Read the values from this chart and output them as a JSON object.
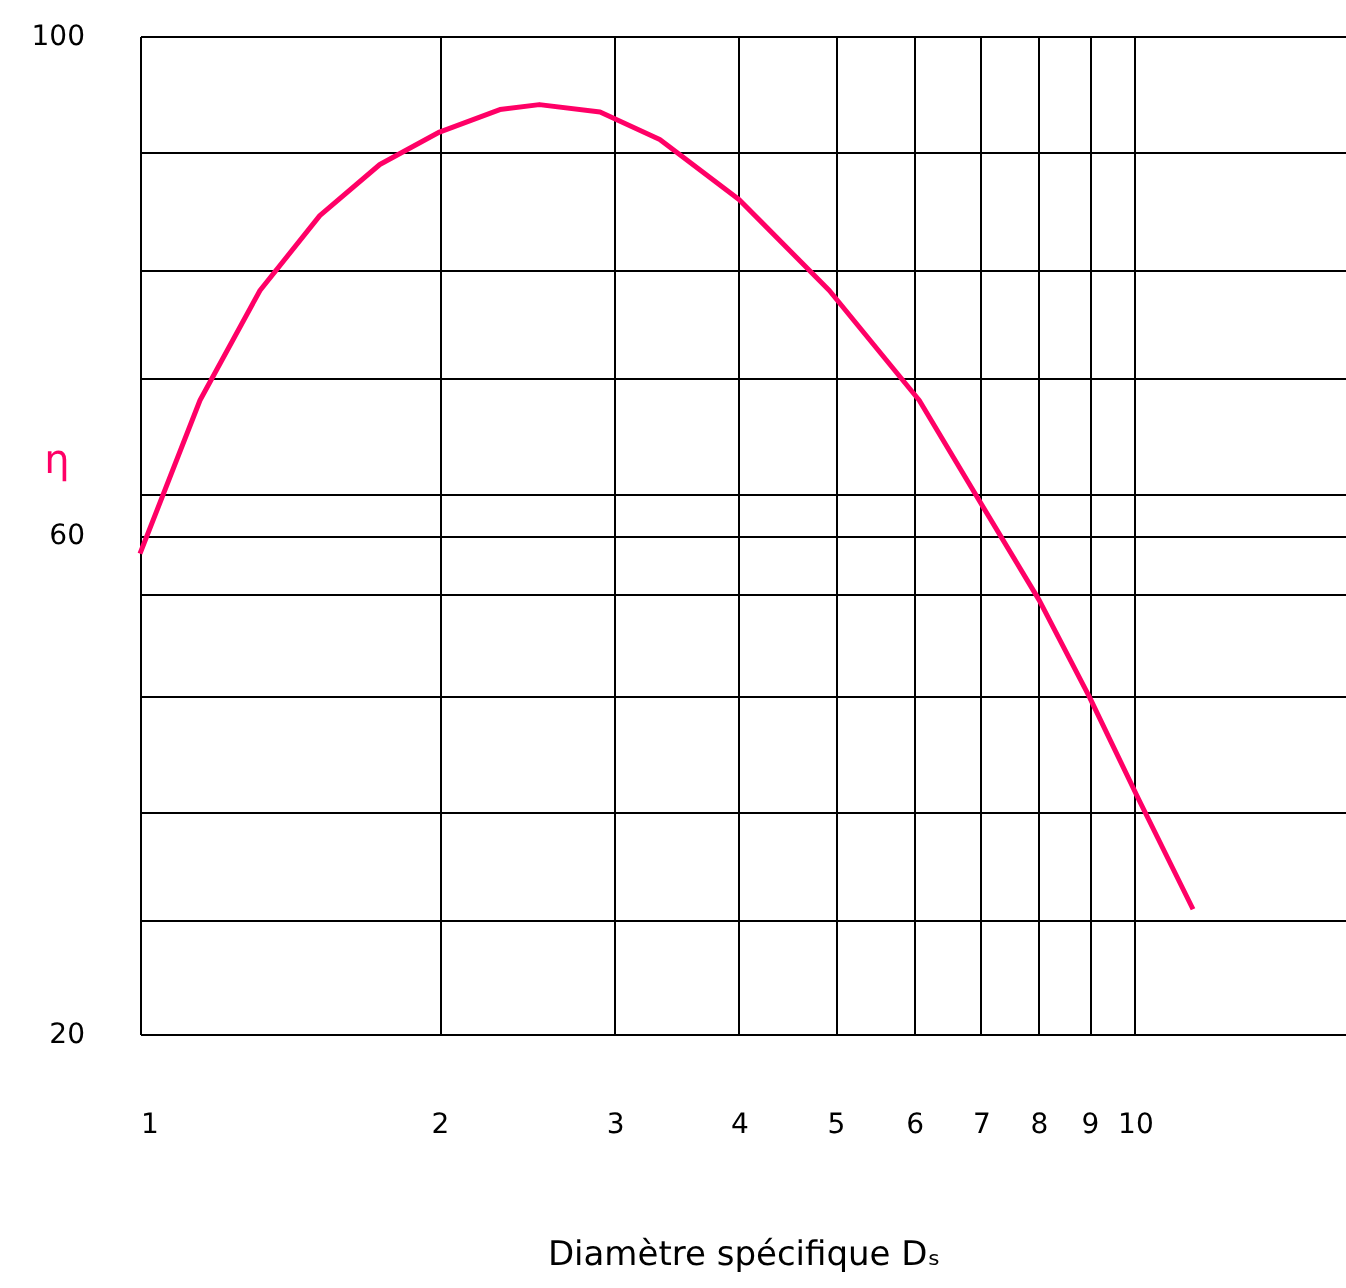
{
  "chart_data": {
    "type": "line",
    "xlabel": "Diamètre spécifique  Dₛ",
    "ylabel": "η",
    "log": "x",
    "grid": true,
    "xlim": [
      1,
      16.3
    ],
    "xticks": [
      1,
      2,
      3,
      4,
      5,
      6,
      7,
      8,
      9,
      10
    ],
    "ylim": [
      20,
      100
    ],
    "yticks": [
      20,
      {
        "value": 29.1,
        "label": null
      },
      {
        "value": 37.8,
        "label": null
      },
      {
        "value": 47.1,
        "label": null
      },
      {
        "value": 55.3,
        "label": null
      },
      60,
      {
        "value": 63.3,
        "label": null
      },
      {
        "value": 72.6,
        "label": null
      },
      {
        "value": 81.2,
        "label": null
      },
      {
        "value": 90.7,
        "label": null
      },
      100
    ],
    "series": [
      {
        "color": "#ff0066",
        "x": [
          1,
          1.149,
          1.32,
          1.516,
          1.742,
          2.0,
          2.3,
          2.52,
          2.9,
          3.33,
          4.0,
          4.93,
          6.07,
          6.97,
          8.01,
          8.99,
          10.09,
          11.44
        ],
        "values": [
          58.5,
          70.8,
          79.6,
          85.6,
          89.7,
          92.3,
          94.1,
          94.5,
          93.9,
          91.7,
          86.9,
          79.6,
          70.8,
          62.8,
          54.8,
          47.1,
          38.8,
          30.0
        ]
      }
    ]
  }
}
